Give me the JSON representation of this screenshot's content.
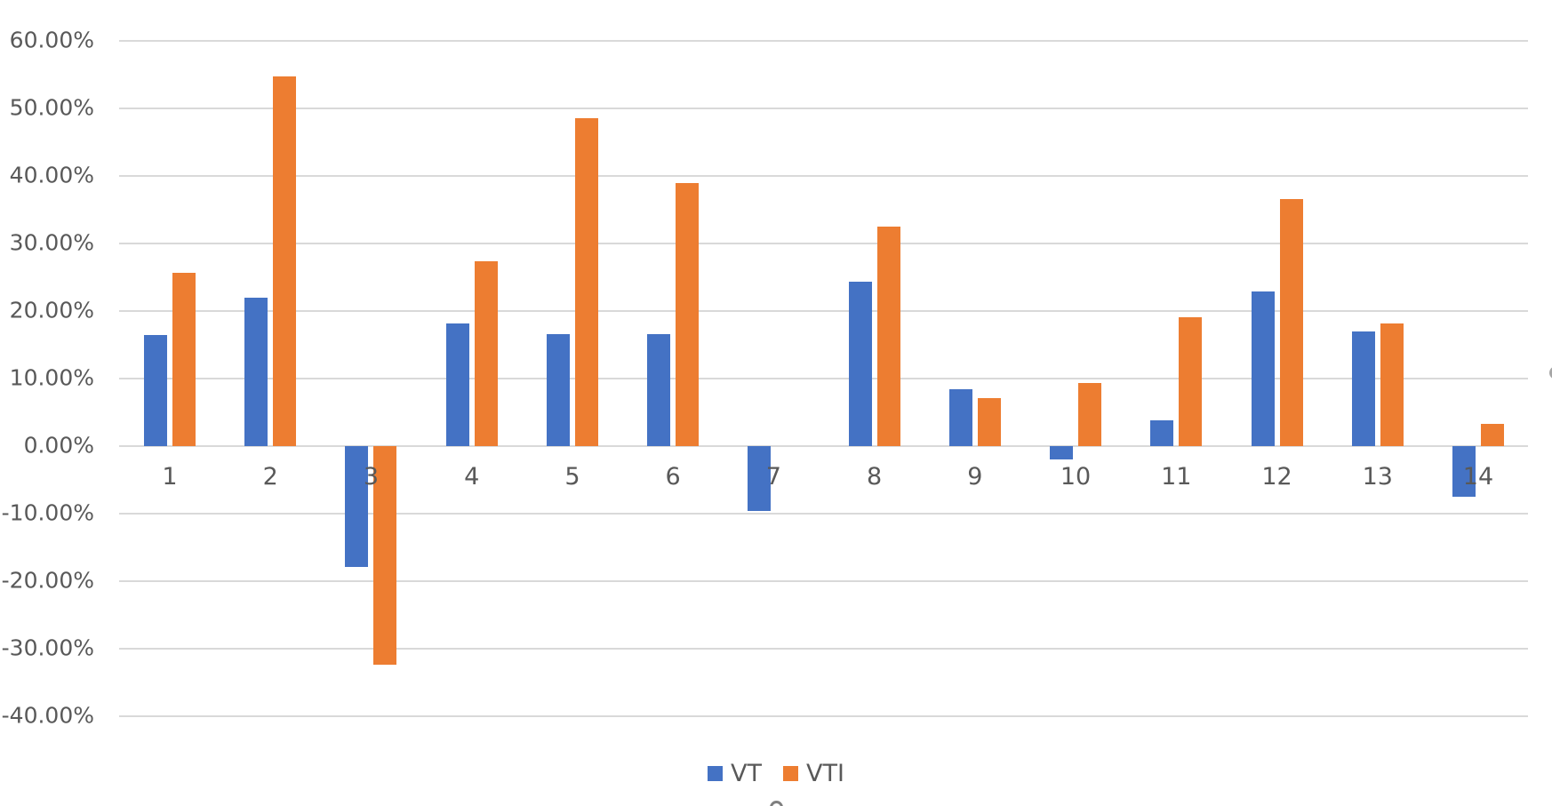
{
  "chart_data": {
    "type": "bar",
    "categories": [
      "1",
      "2",
      "3",
      "4",
      "5",
      "6",
      "7",
      "8",
      "9",
      "10",
      "11",
      "12",
      "13",
      "14"
    ],
    "series": [
      {
        "name": "VT",
        "color": "#4472C4",
        "values": [
          16.4,
          22.0,
          -17.9,
          18.2,
          16.6,
          16.6,
          -9.6,
          24.3,
          8.4,
          -2.0,
          3.8,
          22.9,
          17.0,
          -7.5
        ]
      },
      {
        "name": "VTI",
        "color": "#ED7D31",
        "values": [
          25.6,
          54.8,
          -32.4,
          27.4,
          48.6,
          38.9,
          0.0,
          32.5,
          7.1,
          9.3,
          19.1,
          36.6,
          18.2,
          3.3
        ]
      }
    ],
    "ylim": [
      -40,
      60
    ],
    "ytick_step": 10,
    "ytick_labels": [
      "60.00%",
      "50.00%",
      "40.00%",
      "30.00%",
      "20.00%",
      "10.00%",
      "0.00%",
      "-10.00%",
      "-20.00%",
      "-30.00%",
      "-40.00%"
    ],
    "value_format": "percent",
    "grid": true,
    "legend_position": "bottom"
  },
  "legend": {
    "items": [
      {
        "label": "VT",
        "color": "#4472C4"
      },
      {
        "label": "VTI",
        "color": "#ED7D31"
      }
    ]
  },
  "colors": {
    "series_vt": "#4472C4",
    "series_vti": "#ED7D31",
    "gridline": "#D9D9D9",
    "axis_text": "#595959"
  },
  "artifacts": {
    "left_edge_glyph": ")"
  }
}
